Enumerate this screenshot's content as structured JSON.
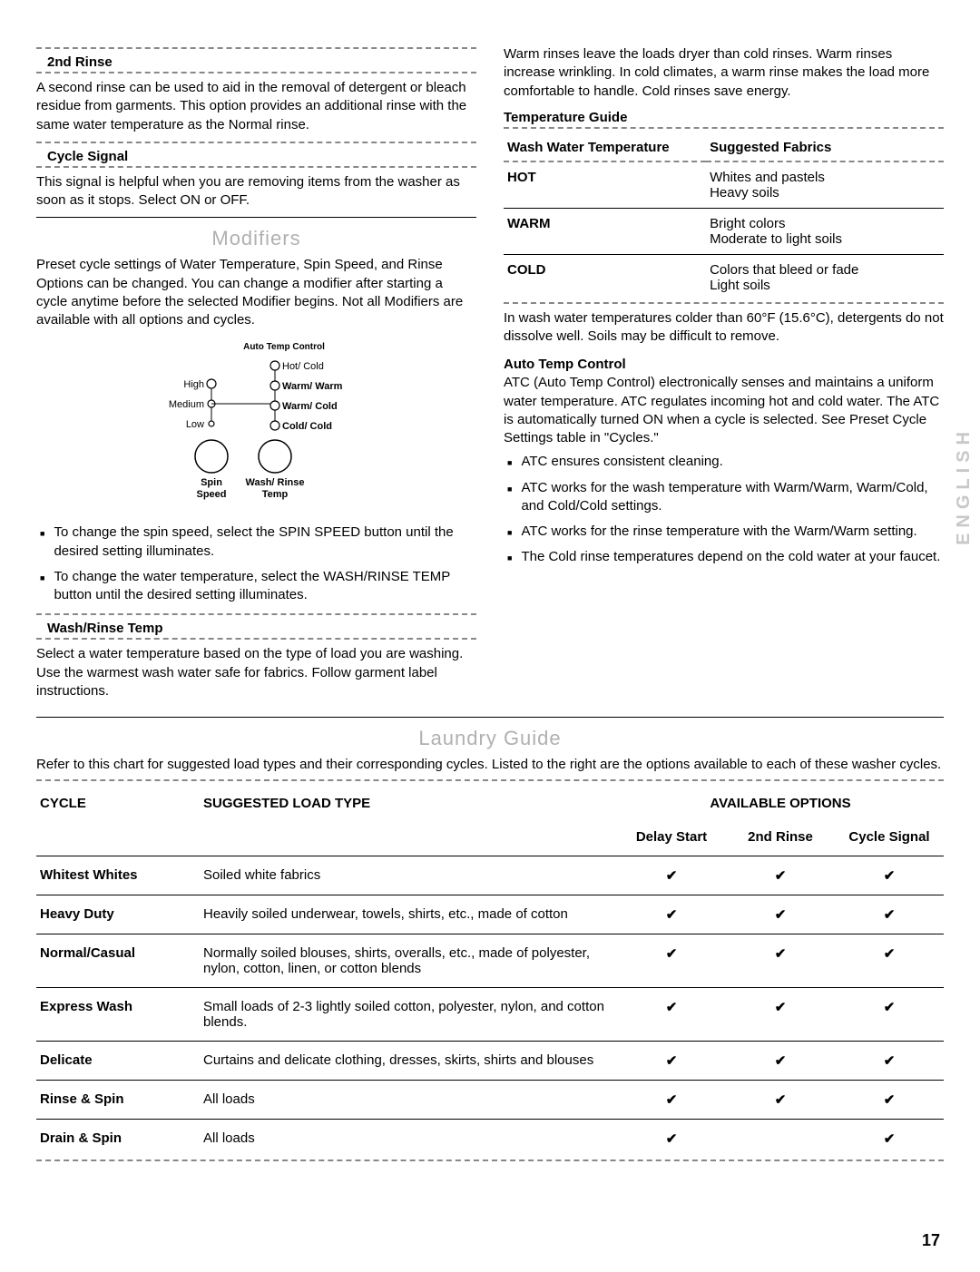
{
  "left": {
    "rinse2": {
      "title": "2nd Rinse",
      "body": "A second rinse can be used to aid in the removal of detergent or bleach residue from garments. This option provides an additional rinse with the same water temperature as the Normal rinse."
    },
    "cycleSignal": {
      "title": "Cycle Signal",
      "body": "This signal is helpful when you are removing items from the washer as soon as it stops. Select ON or OFF."
    },
    "modifiers": {
      "heading": "Modifiers",
      "intro": "Preset cycle settings of Water Temperature, Spin Speed, and Rinse Options can be changed. You can change a modifier after starting a cycle anytime before the selected Modifier begins. Not all Modifiers are available with all options and cycles.",
      "diagram": {
        "autoTemp": "Auto Temp Control",
        "spinLabels": [
          "High",
          "Medium",
          "Low"
        ],
        "tempLabels": [
          "Hot/ Cold",
          "Warm/ Warm",
          "Warm/ Cold",
          "Cold/ Cold"
        ],
        "spinCaption": "Spin Speed",
        "tempCaption": "Wash/ Rinse Temp"
      },
      "bullets": [
        "To change the spin speed, select the SPIN SPEED button until the desired setting illuminates.",
        "To change the water temperature, select the WASH/RINSE TEMP button until the desired setting illuminates."
      ]
    },
    "washRinse": {
      "title": "Wash/Rinse Temp",
      "body": "Select a water temperature based on the type of load you are washing. Use the warmest wash water safe for fabrics. Follow garment label instructions."
    }
  },
  "right": {
    "intro": "Warm rinses leave the loads dryer than cold rinses. Warm rinses increase wrinkling. In cold climates, a warm rinse makes the load more comfortable to handle. Cold rinses save energy.",
    "tempGuide": {
      "title": "Temperature Guide",
      "col1": "Wash Water Temperature",
      "col2": "Suggested Fabrics",
      "rows": [
        {
          "temp": "HOT",
          "line1": "Whites and pastels",
          "line2": "Heavy soils"
        },
        {
          "temp": "WARM",
          "line1": "Bright colors",
          "line2": "Moderate to light soils"
        },
        {
          "temp": "COLD",
          "line1": "Colors that bleed or fade",
          "line2": "Light soils"
        }
      ],
      "note": "In wash water temperatures colder than 60°F (15.6°C), detergents do not dissolve well. Soils may be difficult to remove."
    },
    "atc": {
      "title": "Auto Temp Control",
      "body": "ATC (Auto Temp Control) electronically senses and maintains a uniform water temperature. ATC regulates incoming hot and cold water. The ATC is automatically turned ON when a cycle is selected. See Preset Cycle Settings table in \"Cycles.\"",
      "bullets": [
        "ATC ensures consistent cleaning.",
        "ATC works for the wash temperature with Warm/Warm, Warm/Cold, and Cold/Cold settings.",
        "ATC works for the rinse temperature with the Warm/Warm setting.",
        "The Cold rinse temperatures depend on the cold water at your faucet."
      ]
    }
  },
  "guide": {
    "heading": "Laundry Guide",
    "intro": "Refer to this chart for suggested load types and their corresponding cycles. Listed to the right are the options available to each of these washer cycles.",
    "headers": {
      "cycle": "CYCLE",
      "load": "SUGGESTED LOAD TYPE",
      "options": "AVAILABLE OPTIONS",
      "opt1": "Delay Start",
      "opt2": "2nd Rinse",
      "opt3": "Cycle Signal"
    },
    "rows": [
      {
        "cycle": "Whitest Whites",
        "load": "Soiled white fabrics",
        "o1": "✔",
        "o2": "✔",
        "o3": "✔"
      },
      {
        "cycle": "Heavy Duty",
        "load": "Heavily soiled underwear, towels, shirts, etc., made of cotton",
        "o1": "✔",
        "o2": "✔",
        "o3": "✔"
      },
      {
        "cycle": "Normal/Casual",
        "load": "Normally soiled blouses, shirts, overalls, etc., made of polyester, nylon, cotton, linen, or cotton blends",
        "o1": "✔",
        "o2": "✔",
        "o3": "✔"
      },
      {
        "cycle": "Express Wash",
        "load": "Small loads of 2-3 lightly soiled cotton, polyester, nylon, and cotton blends.",
        "o1": "✔",
        "o2": "✔",
        "o3": "✔"
      },
      {
        "cycle": "Delicate",
        "load": "Curtains and delicate clothing, dresses, skirts, shirts and blouses",
        "o1": "✔",
        "o2": "✔",
        "o3": "✔"
      },
      {
        "cycle": "Rinse & Spin",
        "load": "All loads",
        "o1": "✔",
        "o2": "✔",
        "o3": "✔"
      },
      {
        "cycle": "Drain & Spin",
        "load": "All loads",
        "o1": "✔",
        "o2": "",
        "o3": "✔"
      }
    ]
  },
  "pageNumber": "17",
  "sideLabel": "ENGLISH"
}
